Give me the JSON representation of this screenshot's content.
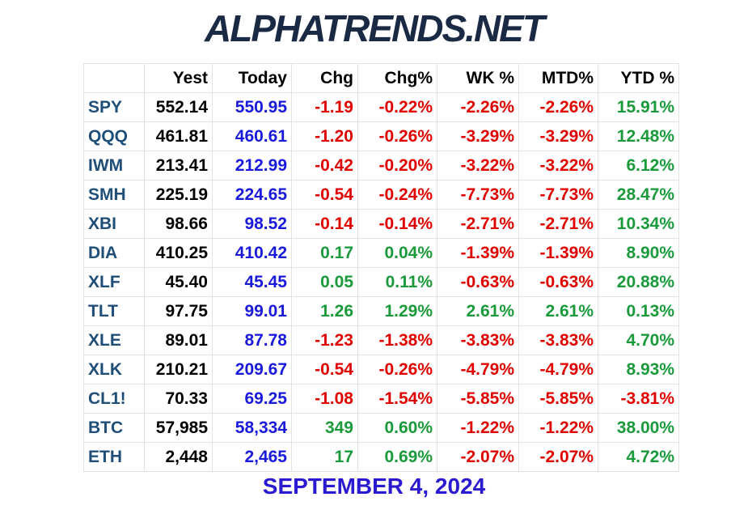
{
  "header": {
    "logo": "ALPHATRENDS.NET"
  },
  "table": {
    "columns": [
      "Yest",
      "Today",
      "Chg",
      "Chg%",
      "WK %",
      "MTD%",
      "YTD %"
    ],
    "rows": [
      [
        "SPY",
        "552.14",
        "550.95",
        "-1.19",
        "-0.22%",
        "-2.26%",
        "-2.26%",
        "15.91%"
      ],
      [
        "QQQ",
        "461.81",
        "460.61",
        "-1.20",
        "-0.26%",
        "-3.29%",
        "-3.29%",
        "12.48%"
      ],
      [
        "IWM",
        "213.41",
        "212.99",
        "-0.42",
        "-0.20%",
        "-3.22%",
        "-3.22%",
        "6.12%"
      ],
      [
        "SMH",
        "225.19",
        "224.65",
        "-0.54",
        "-0.24%",
        "-7.73%",
        "-7.73%",
        "28.47%"
      ],
      [
        "XBI",
        "98.66",
        "98.52",
        "-0.14",
        "-0.14%",
        "-2.71%",
        "-2.71%",
        "10.34%"
      ],
      [
        "DIA",
        "410.25",
        "410.42",
        "0.17",
        "0.04%",
        "-1.39%",
        "-1.39%",
        "8.90%"
      ],
      [
        "XLF",
        "45.40",
        "45.45",
        "0.05",
        "0.11%",
        "-0.63%",
        "-0.63%",
        "20.88%"
      ],
      [
        "TLT",
        "97.75",
        "99.01",
        "1.26",
        "1.29%",
        "2.61%",
        "2.61%",
        "0.13%"
      ],
      [
        "XLE",
        "89.01",
        "87.78",
        "-1.23",
        "-1.38%",
        "-3.83%",
        "-3.83%",
        "4.70%"
      ],
      [
        "XLK",
        "210.21",
        "209.67",
        "-0.54",
        "-0.26%",
        "-4.79%",
        "-4.79%",
        "8.93%"
      ],
      [
        "CL1!",
        "70.33",
        "69.25",
        "-1.08",
        "-1.54%",
        "-5.85%",
        "-5.85%",
        "-3.81%"
      ],
      [
        "BTC",
        "57,985",
        "58,334",
        "349",
        "0.60%",
        "-1.22%",
        "-1.22%",
        "38.00%"
      ],
      [
        "ETH",
        "2,448",
        "2,465",
        "17",
        "0.69%",
        "-2.07%",
        "-2.07%",
        "4.72%"
      ]
    ]
  },
  "footer": {
    "date": "SEPTEMBER 4, 2024"
  }
}
